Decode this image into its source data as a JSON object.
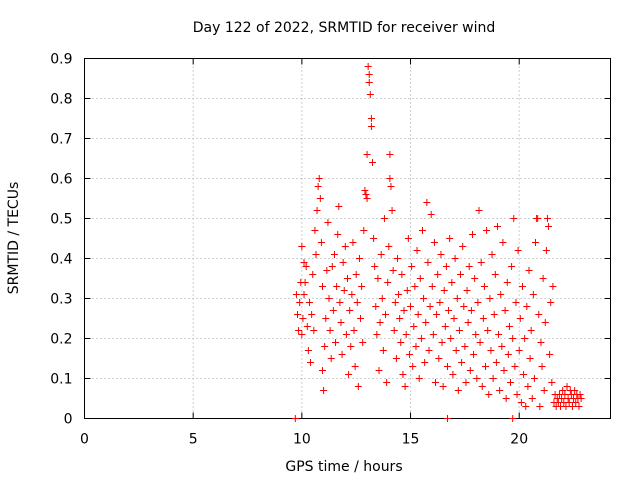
{
  "chart_data": {
    "type": "scatter",
    "title": "Day 122 of 2022, SRMTID for receiver wind",
    "xlabel": "GPS time / hours",
    "ylabel": "SRMTID / TECUs",
    "xlim": [
      0,
      24.2
    ],
    "ylim": [
      0,
      0.9
    ],
    "x_ticks": [
      0,
      5,
      10,
      15,
      20
    ],
    "y_ticks": [
      0,
      0.1,
      0.2,
      0.3,
      0.4,
      0.5,
      0.6,
      0.7,
      0.8,
      0.9
    ],
    "x_tick_labels": [
      "0",
      "5",
      "10",
      "15",
      "20"
    ],
    "y_tick_labels": [
      "0",
      "0.1",
      "0.2",
      "0.3",
      "0.4",
      "0.5",
      "0.6",
      "0.7",
      "0.8",
      "0.9"
    ],
    "grid": true,
    "marker": "plus",
    "color": "#ff0000",
    "series": [
      {
        "name": "SRMTID",
        "points": [
          [
            9.7,
            0.0
          ],
          [
            16.7,
            0.0
          ],
          [
            19.7,
            0.0
          ],
          [
            9.75,
            0.31
          ],
          [
            9.8,
            0.26
          ],
          [
            9.85,
            0.22
          ],
          [
            9.9,
            0.29
          ],
          [
            9.95,
            0.34
          ],
          [
            10.0,
            0.43
          ],
          [
            10.0,
            0.21
          ],
          [
            10.05,
            0.25
          ],
          [
            10.1,
            0.39
          ],
          [
            10.1,
            0.31
          ],
          [
            10.15,
            0.34
          ],
          [
            10.2,
            0.38
          ],
          [
            10.25,
            0.23
          ],
          [
            10.3,
            0.17
          ],
          [
            10.35,
            0.29
          ],
          [
            10.4,
            0.14
          ],
          [
            10.45,
            0.26
          ],
          [
            10.5,
            0.36
          ],
          [
            10.55,
            0.22
          ],
          [
            10.6,
            0.47
          ],
          [
            10.65,
            0.41
          ],
          [
            10.7,
            0.52
          ],
          [
            10.75,
            0.58
          ],
          [
            10.8,
            0.6
          ],
          [
            10.85,
            0.55
          ],
          [
            10.9,
            0.44
          ],
          [
            10.95,
            0.33
          ],
          [
            10.95,
            0.12
          ],
          [
            11.0,
            0.07
          ],
          [
            11.05,
            0.18
          ],
          [
            11.1,
            0.25
          ],
          [
            11.15,
            0.37
          ],
          [
            11.2,
            0.49
          ],
          [
            11.25,
            0.3
          ],
          [
            11.3,
            0.22
          ],
          [
            11.35,
            0.15
          ],
          [
            11.4,
            0.38
          ],
          [
            11.45,
            0.27
          ],
          [
            11.5,
            0.41
          ],
          [
            11.55,
            0.19
          ],
          [
            11.6,
            0.33
          ],
          [
            11.65,
            0.46
          ],
          [
            11.7,
            0.53
          ],
          [
            11.75,
            0.29
          ],
          [
            11.8,
            0.24
          ],
          [
            11.85,
            0.16
          ],
          [
            11.9,
            0.39
          ],
          [
            11.95,
            0.32
          ],
          [
            12.0,
            0.43
          ],
          [
            12.05,
            0.21
          ],
          [
            12.1,
            0.35
          ],
          [
            12.15,
            0.11
          ],
          [
            12.2,
            0.27
          ],
          [
            12.25,
            0.18
          ],
          [
            12.3,
            0.31
          ],
          [
            12.35,
            0.44
          ],
          [
            12.4,
            0.22
          ],
          [
            12.45,
            0.13
          ],
          [
            12.5,
            0.36
          ],
          [
            12.55,
            0.29
          ],
          [
            12.6,
            0.08
          ],
          [
            12.65,
            0.4
          ],
          [
            12.7,
            0.25
          ],
          [
            12.75,
            0.33
          ],
          [
            12.8,
            0.19
          ],
          [
            12.85,
            0.47
          ],
          [
            12.9,
            0.57
          ],
          [
            12.95,
            0.56
          ],
          [
            13.0,
            0.66
          ],
          [
            13.0,
            0.55
          ],
          [
            13.05,
            0.88
          ],
          [
            13.1,
            0.86
          ],
          [
            13.1,
            0.84
          ],
          [
            13.15,
            0.81
          ],
          [
            13.2,
            0.75
          ],
          [
            13.2,
            0.73
          ],
          [
            13.25,
            0.64
          ],
          [
            13.3,
            0.45
          ],
          [
            13.35,
            0.38
          ],
          [
            13.4,
            0.28
          ],
          [
            13.45,
            0.21
          ],
          [
            13.5,
            0.35
          ],
          [
            13.55,
            0.12
          ],
          [
            13.6,
            0.24
          ],
          [
            13.65,
            0.41
          ],
          [
            13.7,
            0.3
          ],
          [
            13.75,
            0.17
          ],
          [
            13.8,
            0.5
          ],
          [
            13.85,
            0.26
          ],
          [
            13.9,
            0.09
          ],
          [
            13.95,
            0.34
          ],
          [
            14.0,
            0.43
          ],
          [
            14.05,
            0.66
          ],
          [
            14.05,
            0.6
          ],
          [
            14.1,
            0.58
          ],
          [
            14.15,
            0.52
          ],
          [
            14.2,
            0.37
          ],
          [
            14.25,
            0.22
          ],
          [
            14.3,
            0.29
          ],
          [
            14.35,
            0.15
          ],
          [
            14.4,
            0.4
          ],
          [
            14.45,
            0.31
          ],
          [
            14.5,
            0.25
          ],
          [
            14.55,
            0.19
          ],
          [
            14.6,
            0.36
          ],
          [
            14.65,
            0.11
          ],
          [
            14.7,
            0.27
          ],
          [
            14.75,
            0.08
          ],
          [
            14.8,
            0.21
          ],
          [
            14.85,
            0.32
          ],
          [
            14.9,
            0.45
          ],
          [
            14.95,
            0.16
          ],
          [
            15.0,
            0.28
          ],
          [
            15.05,
            0.38
          ],
          [
            15.1,
            0.13
          ],
          [
            15.15,
            0.23
          ],
          [
            15.2,
            0.33
          ],
          [
            15.25,
            0.18
          ],
          [
            15.3,
            0.42
          ],
          [
            15.35,
            0.26
          ],
          [
            15.4,
            0.1
          ],
          [
            15.45,
            0.35
          ],
          [
            15.5,
            0.2
          ],
          [
            15.55,
            0.47
          ],
          [
            15.6,
            0.3
          ],
          [
            15.65,
            0.14
          ],
          [
            15.7,
            0.24
          ],
          [
            15.75,
            0.54
          ],
          [
            15.8,
            0.39
          ],
          [
            15.85,
            0.17
          ],
          [
            15.9,
            0.28
          ],
          [
            15.95,
            0.51
          ],
          [
            16.0,
            0.33
          ],
          [
            16.05,
            0.21
          ],
          [
            16.1,
            0.44
          ],
          [
            16.15,
            0.09
          ],
          [
            16.2,
            0.26
          ],
          [
            16.25,
            0.36
          ],
          [
            16.3,
            0.15
          ],
          [
            16.35,
            0.29
          ],
          [
            16.4,
            0.41
          ],
          [
            16.45,
            0.19
          ],
          [
            16.5,
            0.08
          ],
          [
            16.55,
            0.32
          ],
          [
            16.6,
            0.23
          ],
          [
            16.65,
            0.38
          ],
          [
            16.7,
            0.13
          ],
          [
            16.75,
            0.27
          ],
          [
            16.8,
            0.45
          ],
          [
            16.85,
            0.2
          ],
          [
            16.9,
            0.34
          ],
          [
            16.95,
            0.11
          ],
          [
            17.0,
            0.25
          ],
          [
            17.05,
            0.4
          ],
          [
            17.1,
            0.17
          ],
          [
            17.15,
            0.3
          ],
          [
            17.2,
            0.07
          ],
          [
            17.25,
            0.22
          ],
          [
            17.3,
            0.36
          ],
          [
            17.35,
            0.14
          ],
          [
            17.4,
            0.43
          ],
          [
            17.45,
            0.28
          ],
          [
            17.5,
            0.18
          ],
          [
            17.55,
            0.09
          ],
          [
            17.6,
            0.32
          ],
          [
            17.65,
            0.24
          ],
          [
            17.7,
            0.38
          ],
          [
            17.75,
            0.12
          ],
          [
            17.8,
            0.27
          ],
          [
            17.85,
            0.46
          ],
          [
            17.9,
            0.16
          ],
          [
            17.95,
            0.35
          ],
          [
            18.0,
            0.21
          ],
          [
            18.05,
            0.1
          ],
          [
            18.1,
            0.29
          ],
          [
            18.15,
            0.52
          ],
          [
            18.2,
            0.19
          ],
          [
            18.25,
            0.39
          ],
          [
            18.3,
            0.08
          ],
          [
            18.35,
            0.25
          ],
          [
            18.4,
            0.33
          ],
          [
            18.45,
            0.13
          ],
          [
            18.5,
            0.47
          ],
          [
            18.55,
            0.22
          ],
          [
            18.6,
            0.06
          ],
          [
            18.65,
            0.3
          ],
          [
            18.7,
            0.17
          ],
          [
            18.75,
            0.41
          ],
          [
            18.8,
            0.1
          ],
          [
            18.85,
            0.26
          ],
          [
            18.9,
            0.36
          ],
          [
            18.95,
            0.14
          ],
          [
            19.0,
            0.48
          ],
          [
            19.05,
            0.21
          ],
          [
            19.1,
            0.07
          ],
          [
            19.15,
            0.31
          ],
          [
            19.2,
            0.18
          ],
          [
            19.25,
            0.44
          ],
          [
            19.3,
            0.12
          ],
          [
            19.35,
            0.27
          ],
          [
            19.4,
            0.05
          ],
          [
            19.45,
            0.34
          ],
          [
            19.5,
            0.16
          ],
          [
            19.55,
            0.23
          ],
          [
            19.6,
            0.09
          ],
          [
            19.65,
            0.38
          ],
          [
            19.7,
            0.2
          ],
          [
            19.75,
            0.5
          ],
          [
            19.8,
            0.13
          ],
          [
            19.85,
            0.29
          ],
          [
            19.9,
            0.06
          ],
          [
            19.95,
            0.42
          ],
          [
            20.0,
            0.17
          ],
          [
            20.05,
            0.25
          ],
          [
            20.1,
            0.04
          ],
          [
            20.15,
            0.33
          ],
          [
            20.2,
            0.11
          ],
          [
            20.25,
            0.2
          ],
          [
            20.3,
            0.03
          ],
          [
            20.35,
            0.28
          ],
          [
            20.4,
            0.08
          ],
          [
            20.45,
            0.37
          ],
          [
            20.5,
            0.15
          ],
          [
            20.55,
            0.22
          ],
          [
            20.6,
            0.05
          ],
          [
            20.65,
            0.31
          ],
          [
            20.7,
            0.1
          ],
          [
            20.75,
            0.44
          ],
          [
            20.8,
            0.5
          ],
          [
            20.85,
            0.5
          ],
          [
            20.9,
            0.26
          ],
          [
            20.95,
            0.03
          ],
          [
            21.0,
            0.19
          ],
          [
            21.05,
            0.13
          ],
          [
            21.1,
            0.35
          ],
          [
            21.15,
            0.07
          ],
          [
            21.2,
            0.24
          ],
          [
            21.25,
            0.42
          ],
          [
            21.3,
            0.5
          ],
          [
            21.35,
            0.48
          ],
          [
            21.4,
            0.16
          ],
          [
            21.45,
            0.29
          ],
          [
            21.5,
            0.09
          ],
          [
            21.55,
            0.33
          ],
          [
            21.6,
            0.04
          ],
          [
            21.65,
            0.06
          ],
          [
            21.7,
            0.03
          ],
          [
            21.75,
            0.05
          ],
          [
            21.8,
            0.04
          ],
          [
            21.85,
            0.06
          ],
          [
            21.9,
            0.03
          ],
          [
            21.95,
            0.05
          ],
          [
            22.0,
            0.07
          ],
          [
            22.05,
            0.04
          ],
          [
            22.1,
            0.06
          ],
          [
            22.15,
            0.03
          ],
          [
            22.2,
            0.08
          ],
          [
            22.25,
            0.05
          ],
          [
            22.3,
            0.04
          ],
          [
            22.35,
            0.07
          ],
          [
            22.4,
            0.06
          ],
          [
            22.45,
            0.03
          ],
          [
            22.5,
            0.05
          ],
          [
            22.55,
            0.07
          ],
          [
            22.6,
            0.04
          ],
          [
            22.65,
            0.06
          ],
          [
            22.7,
            0.05
          ],
          [
            22.75,
            0.03
          ],
          [
            22.8,
            0.06
          ],
          [
            22.85,
            0.05
          ]
        ]
      }
    ]
  }
}
